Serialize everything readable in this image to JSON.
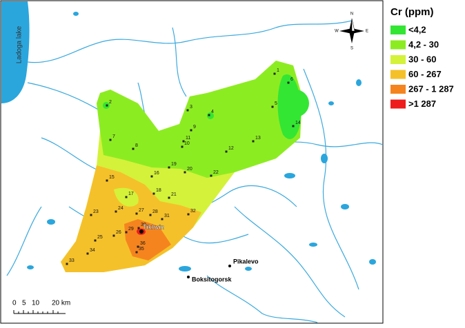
{
  "legend": {
    "title": "Cr (ppm)",
    "items": [
      {
        "label": "<4,2",
        "color": "#33e633"
      },
      {
        "label": "4,2 - 30",
        "color": "#8cec22"
      },
      {
        "label": "30 - 60",
        "color": "#d4f23a"
      },
      {
        "label": "60 - 267",
        "color": "#f5c12a"
      },
      {
        "label": "267 - 1 287",
        "color": "#f5841f"
      },
      {
        "label": ">1 287",
        "color": "#ee1c1c"
      }
    ]
  },
  "lake": "Ladoga lake",
  "towns": [
    "Tikhvin",
    "Pikalevo",
    "Boksitogorsk"
  ],
  "samples": [
    "1",
    "2",
    "3",
    "4",
    "5",
    "6",
    "7",
    "8",
    "9",
    "10",
    "11",
    "12",
    "13",
    "14",
    "15",
    "16",
    "17",
    "18",
    "19",
    "20",
    "21",
    "22",
    "23",
    "24",
    "25",
    "26",
    "27",
    "28",
    "29",
    "30",
    "31",
    "32",
    "33",
    "34",
    "35",
    "36"
  ],
  "scale": [
    "0",
    "5",
    "10",
    "20 km"
  ],
  "compass": [
    "N",
    "S",
    "E",
    "W"
  ]
}
